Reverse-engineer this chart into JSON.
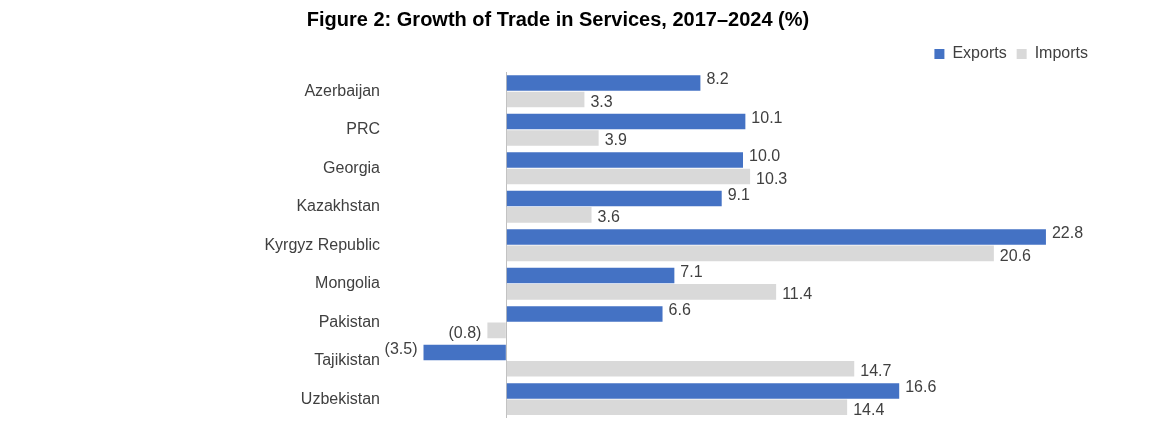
{
  "chart_data": {
    "type": "bar",
    "orientation": "horizontal",
    "title": "Figure 2: Growth of Trade in Services, 2017–2024 (%)",
    "categories": [
      "Azerbaijan",
      "PRC",
      "Georgia",
      "Kazakhstan",
      "Kyrgyz Republic",
      "Mongolia",
      "Pakistan",
      "Tajikistan",
      "Uzbekistan"
    ],
    "series": [
      {
        "name": "Exports",
        "color": "#4472c4",
        "values": [
          8.2,
          10.1,
          10.0,
          9.1,
          22.8,
          7.1,
          6.6,
          -3.5,
          16.6
        ],
        "value_labels": [
          "8.2",
          "10.1",
          "10.0",
          "9.1",
          "22.8",
          "7.1",
          "6.6",
          "(3.5)",
          "16.6"
        ]
      },
      {
        "name": "Imports",
        "color": "#d9d9d9",
        "values": [
          3.3,
          3.9,
          10.3,
          3.6,
          20.6,
          11.4,
          -0.8,
          14.7,
          14.4
        ],
        "value_labels": [
          "3.3",
          "3.9",
          "10.3",
          "3.6",
          "20.6",
          "11.4",
          "(0.8)",
          "14.7",
          "14.4"
        ]
      }
    ],
    "tick_labels": "y",
    "grid": false,
    "legend": "top right"
  }
}
